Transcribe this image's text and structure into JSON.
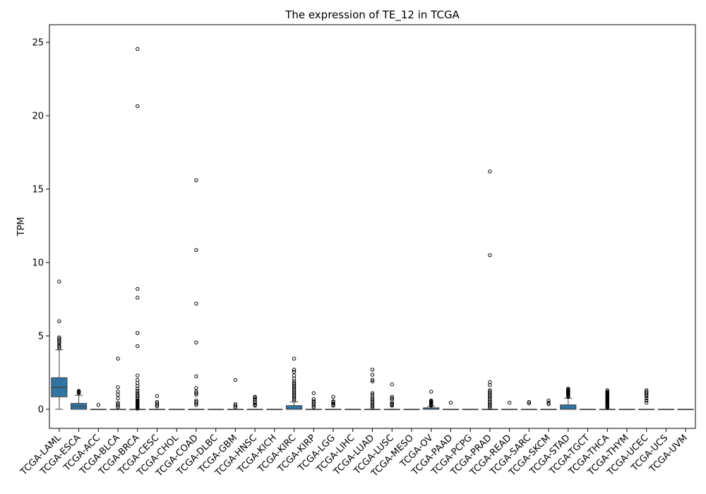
{
  "chart_data": {
    "type": "box",
    "title": "The expression of TE_12 in TCGA",
    "xlabel": "",
    "ylabel": "TPM",
    "ylim": [
      -1.3,
      26.2
    ],
    "yticks": [
      0,
      5,
      10,
      15,
      20,
      25
    ],
    "grid": false,
    "box_color": "#3274a1",
    "categories": [
      "TCGA-LAML",
      "TCGA-ESCA",
      "TCGA-ACC",
      "TCGA-BLCA",
      "TCGA-BRCA",
      "TCGA-CESC",
      "TCGA-CHOL",
      "TCGA-COAD",
      "TCGA-DLBC",
      "TCGA-GBM",
      "TCGA-HNSC",
      "TCGA-KICH",
      "TCGA-KIRC",
      "TCGA-KIRP",
      "TCGA-LGG",
      "TCGA-LIHC",
      "TCGA-LUAD",
      "TCGA-LUSC",
      "TCGA-MESO",
      "TCGA-OV",
      "TCGA-PAAD",
      "TCGA-PCPG",
      "TCGA-PRAD",
      "TCGA-READ",
      "TCGA-SARC",
      "TCGA-SKCM",
      "TCGA-STAD",
      "TCGA-TGCT",
      "TCGA-THCA",
      "TCGA-THYM",
      "TCGA-UCEC",
      "TCGA-UCS",
      "TCGA-UVM"
    ],
    "boxes": [
      {
        "q1": 0.85,
        "median": 1.5,
        "q3": 2.15,
        "whislo": 0,
        "whishi": 4.05,
        "fliers": [
          4.15,
          4.25,
          4.35,
          4.5,
          4.6,
          4.7,
          4.8,
          4.9,
          6.0,
          8.7
        ]
      },
      {
        "q1": 0,
        "median": 0.2,
        "q3": 0.4,
        "whislo": 0,
        "whishi": 0.95,
        "fliers": [
          1.1,
          1.15,
          1.2,
          1.25
        ]
      },
      {
        "q1": 0,
        "median": 0,
        "q3": 0,
        "whislo": 0,
        "whishi": 0,
        "fliers": [
          0.3
        ]
      },
      {
        "q1": 0,
        "median": 0,
        "q3": 0,
        "whislo": 0,
        "whishi": 0,
        "fliers": [
          0.15,
          0.25,
          0.35,
          0.45,
          0.75,
          1.0,
          1.2,
          1.5,
          3.45
        ]
      },
      {
        "q1": 0,
        "median": 0,
        "q3": 0,
        "whislo": 0,
        "whishi": 0,
        "fliers": [
          0.05,
          0.1,
          0.15,
          0.2,
          0.25,
          0.3,
          0.35,
          0.4,
          0.45,
          0.5,
          0.55,
          0.6,
          0.7,
          0.8,
          0.9,
          1.0,
          1.1,
          1.25,
          1.4,
          1.6,
          1.8,
          2.0,
          2.3,
          4.3,
          5.2,
          7.6,
          8.2,
          20.65,
          24.55
        ]
      },
      {
        "q1": 0,
        "median": 0,
        "q3": 0,
        "whislo": 0,
        "whishi": 0,
        "fliers": [
          0.2,
          0.3,
          0.4,
          0.5,
          0.9
        ]
      },
      {
        "q1": 0,
        "median": 0,
        "q3": 0,
        "whislo": 0,
        "whishi": 0,
        "fliers": []
      },
      {
        "q1": 0,
        "median": 0,
        "q3": 0,
        "whislo": 0,
        "whishi": 0,
        "fliers": [
          0.3,
          0.4,
          0.5,
          0.6,
          1.0,
          1.1,
          1.2,
          1.45,
          2.25,
          4.55,
          7.2,
          10.85,
          15.6
        ]
      },
      {
        "q1": 0,
        "median": 0,
        "q3": 0,
        "whislo": 0,
        "whishi": 0,
        "fliers": []
      },
      {
        "q1": 0,
        "median": 0,
        "q3": 0,
        "whislo": 0,
        "whishi": 0,
        "fliers": [
          0.15,
          0.25,
          0.35,
          2.0
        ]
      },
      {
        "q1": 0,
        "median": 0,
        "q3": 0,
        "whislo": 0,
        "whishi": 0,
        "fliers": [
          0.25,
          0.3,
          0.4,
          0.5,
          0.6,
          0.7,
          0.8,
          0.85
        ]
      },
      {
        "q1": 0,
        "median": 0,
        "q3": 0,
        "whislo": 0,
        "whishi": 0,
        "fliers": []
      },
      {
        "q1": 0,
        "median": 0,
        "q3": 0.25,
        "whislo": 0,
        "whishi": 0.5,
        "fliers": [
          0.6,
          0.7,
          0.8,
          0.9,
          1.0,
          1.1,
          1.2,
          1.3,
          1.4,
          1.5,
          1.6,
          1.7,
          1.8,
          1.9,
          2.1,
          2.3,
          2.55,
          2.7,
          3.45
        ]
      },
      {
        "q1": 0,
        "median": 0,
        "q3": 0,
        "whislo": 0,
        "whishi": 0,
        "fliers": [
          0.15,
          0.25,
          0.35,
          0.45,
          0.55,
          0.7,
          1.1
        ]
      },
      {
        "q1": 0,
        "median": 0,
        "q3": 0,
        "whislo": 0,
        "whishi": 0,
        "fliers": [
          0.25,
          0.3,
          0.4,
          0.5,
          0.55,
          0.85
        ]
      },
      {
        "q1": 0,
        "median": 0,
        "q3": 0,
        "whislo": 0,
        "whishi": 0,
        "fliers": []
      },
      {
        "q1": 0,
        "median": 0,
        "q3": 0,
        "whislo": 0,
        "whishi": 0,
        "fliers": [
          0.1,
          0.2,
          0.3,
          0.4,
          0.5,
          0.6,
          0.7,
          0.8,
          1.0,
          1.1,
          1.9,
          2.0,
          2.35,
          2.7
        ]
      },
      {
        "q1": 0,
        "median": 0,
        "q3": 0,
        "whislo": 0,
        "whishi": 0,
        "fliers": [
          0.25,
          0.3,
          0.35,
          0.45,
          0.65,
          0.75,
          0.85,
          1.7
        ]
      },
      {
        "q1": 0,
        "median": 0,
        "q3": 0,
        "whislo": 0,
        "whishi": 0,
        "fliers": []
      },
      {
        "q1": 0,
        "median": 0,
        "q3": 0.1,
        "whislo": 0,
        "whishi": 0.2,
        "fliers": [
          0.25,
          0.3,
          0.35,
          0.4,
          0.45,
          0.5,
          0.55,
          0.6,
          1.2
        ]
      },
      {
        "q1": 0,
        "median": 0,
        "q3": 0,
        "whislo": 0,
        "whishi": 0,
        "fliers": [
          0.45
        ]
      },
      {
        "q1": 0,
        "median": 0,
        "q3": 0,
        "whislo": 0,
        "whishi": 0,
        "fliers": []
      },
      {
        "q1": 0,
        "median": 0,
        "q3": 0,
        "whislo": 0,
        "whishi": 0,
        "fliers": [
          0.1,
          0.2,
          0.3,
          0.4,
          0.5,
          0.6,
          0.7,
          0.8,
          0.9,
          1.0,
          1.1,
          1.2,
          1.3,
          1.65,
          1.85,
          10.5,
          16.2
        ]
      },
      {
        "q1": 0,
        "median": 0,
        "q3": 0,
        "whislo": 0,
        "whishi": 0,
        "fliers": [
          0.45
        ]
      },
      {
        "q1": 0,
        "median": 0,
        "q3": 0,
        "whislo": 0,
        "whishi": 0,
        "fliers": [
          0.4,
          0.5
        ]
      },
      {
        "q1": 0,
        "median": 0,
        "q3": 0,
        "whislo": 0,
        "whishi": 0,
        "fliers": [
          0.35,
          0.45,
          0.6
        ]
      },
      {
        "q1": 0,
        "median": 0,
        "q3": 0.3,
        "whislo": 0,
        "whishi": 0.75,
        "fliers": [
          0.85,
          0.9,
          0.95,
          1.0,
          1.05,
          1.1,
          1.15,
          1.2,
          1.25,
          1.3,
          1.35,
          1.4
        ]
      },
      {
        "q1": 0,
        "median": 0,
        "q3": 0,
        "whislo": 0,
        "whishi": 0,
        "fliers": []
      },
      {
        "q1": 0,
        "median": 0,
        "q3": 0,
        "whislo": 0,
        "whishi": 0,
        "fliers": [
          0.1,
          0.15,
          0.2,
          0.25,
          0.3,
          0.35,
          0.4,
          0.45,
          0.5,
          0.55,
          0.6,
          0.65,
          0.7,
          0.75,
          0.8,
          0.85,
          0.9,
          0.95,
          1.0,
          1.05,
          1.1,
          1.15,
          1.2,
          1.3
        ]
      },
      {
        "q1": 0,
        "median": 0,
        "q3": 0,
        "whislo": 0,
        "whishi": 0,
        "fliers": []
      },
      {
        "q1": 0,
        "median": 0,
        "q3": 0,
        "whislo": 0,
        "whishi": 0,
        "fliers": [
          0.45,
          0.6,
          0.75,
          0.9,
          1.0,
          1.1,
          1.2,
          1.3
        ]
      },
      {
        "q1": 0,
        "median": 0,
        "q3": 0,
        "whislo": 0,
        "whishi": 0,
        "fliers": []
      },
      {
        "q1": 0,
        "median": 0,
        "q3": 0,
        "whislo": 0,
        "whishi": 0,
        "fliers": []
      }
    ]
  }
}
